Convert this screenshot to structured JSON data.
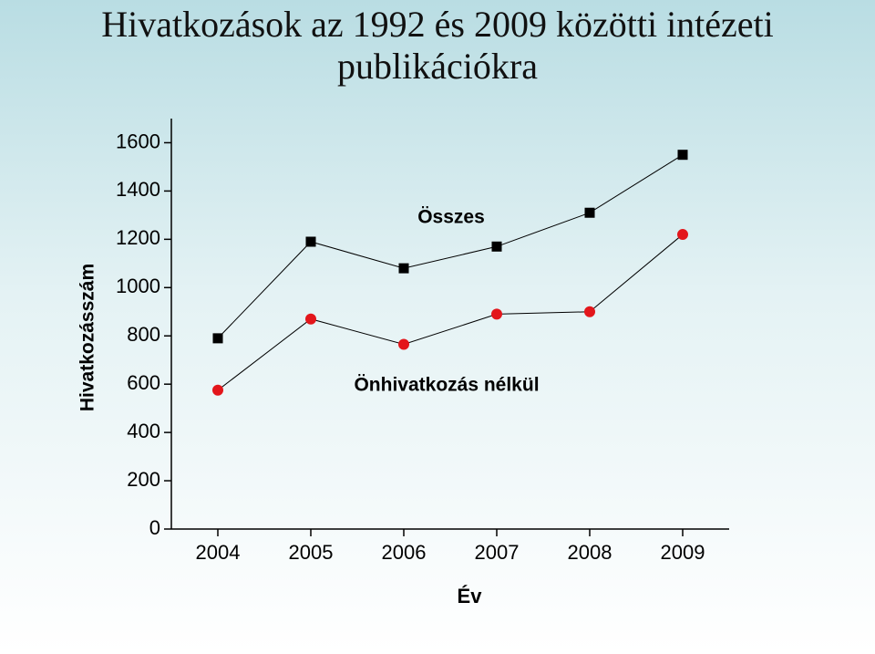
{
  "chart_data": {
    "type": "line",
    "title": "Hivatkozások az 1992 és 2009 közötti intézeti publikációkra",
    "x_label": "Év",
    "y_label": "Hivatkozásszám",
    "x": [
      2004,
      2005,
      2006,
      2007,
      2008,
      2009
    ],
    "series": [
      {
        "name": "Összes",
        "color": "#000000",
        "marker": "square",
        "values": [
          790,
          1190,
          1080,
          1170,
          1310,
          1550
        ]
      },
      {
        "name": "Önhivatkozás nélkül",
        "color": "#e3161b",
        "marker": "circle",
        "values": [
          575,
          870,
          765,
          890,
          900,
          1220
        ]
      }
    ],
    "xlim": [
      2003.5,
      2009.5
    ],
    "xticks": [
      2004,
      2005,
      2006,
      2007,
      2008,
      2009
    ],
    "ylim": [
      0,
      1700
    ],
    "yticks": [
      0,
      200,
      400,
      600,
      800,
      1000,
      1200,
      1400,
      1600
    ]
  }
}
